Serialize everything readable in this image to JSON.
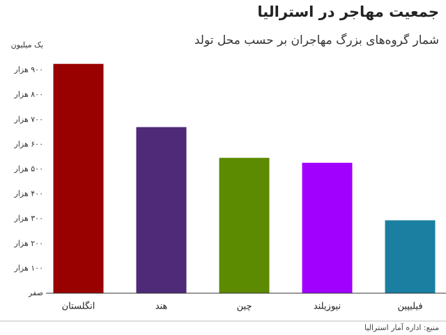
{
  "chart_data": {
    "type": "bar",
    "title": "جمعیت مهاجر در استرالیا",
    "subtitle": "شمار گروه‌های بزرگ مهاجران بر حسب محل تولد",
    "source": "منبع: اداره آمار استرالیا",
    "categories": [
      "انگلستان",
      "هند",
      "چین",
      "نیوزیلند",
      "فیلیپین"
    ],
    "values": [
      925000,
      670000,
      546000,
      526000,
      294000
    ],
    "colors": [
      "#990000",
      "#4e2a78",
      "#5c8a00",
      "#a100ff",
      "#1a7fa0"
    ],
    "ylim": [
      0,
      1000000
    ],
    "yticks": [
      {
        "value": 0,
        "label": "صفر"
      },
      {
        "value": 100000,
        "label": "۱۰۰ هزار"
      },
      {
        "value": 200000,
        "label": "۲۰۰ هزار"
      },
      {
        "value": 300000,
        "label": "۳۰۰ هزار"
      },
      {
        "value": 400000,
        "label": "۴۰۰ هزار"
      },
      {
        "value": 500000,
        "label": "۵۰۰ هزار"
      },
      {
        "value": 600000,
        "label": "۶۰۰ هزار"
      },
      {
        "value": 700000,
        "label": "۷۰۰ هزار"
      },
      {
        "value": 800000,
        "label": "۸۰۰ هزار"
      },
      {
        "value": 900000,
        "label": "۹۰۰ هزار"
      },
      {
        "value": 1000000,
        "label": "یک میلیون"
      }
    ],
    "grid": false
  }
}
